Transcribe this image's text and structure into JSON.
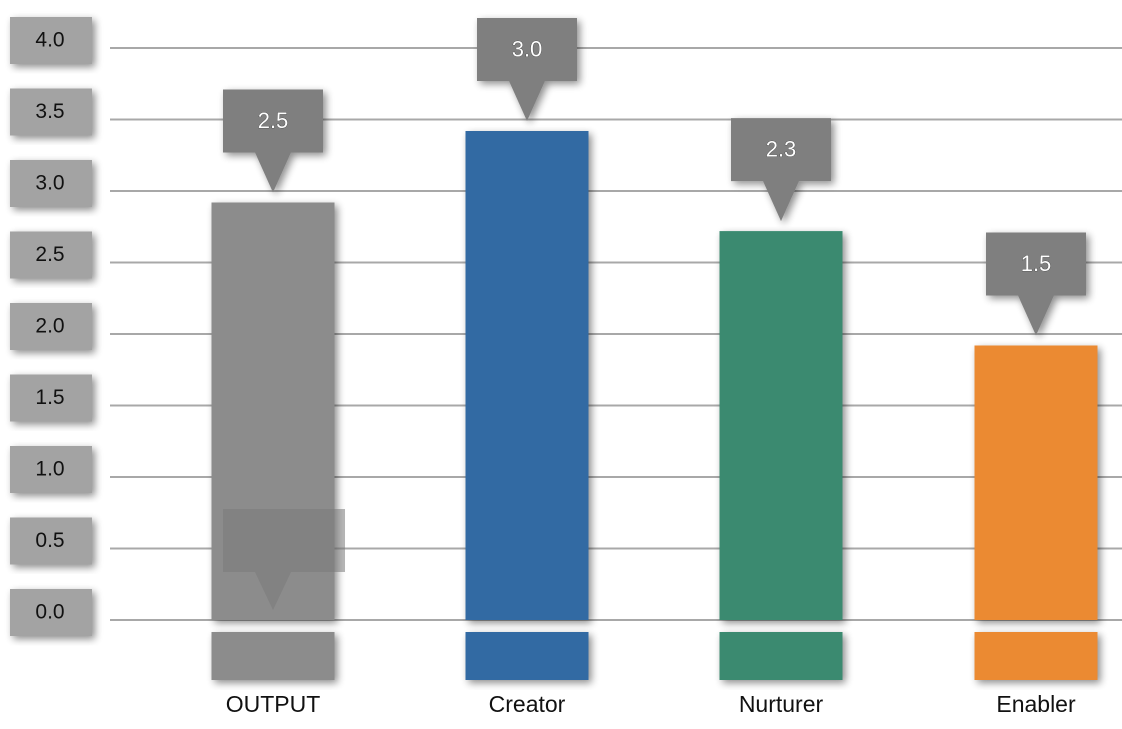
{
  "chart_data": {
    "type": "bar",
    "categories": [
      "OUTPUT",
      "Creator",
      "Nurturer",
      "Enabler"
    ],
    "values": [
      2.5,
      3.0,
      2.3,
      1.5
    ],
    "data_labels": [
      "2.5",
      "3.0",
      "2.3",
      "1.5"
    ],
    "colors": [
      "#8c8c8c",
      "#336ba3",
      "#3a8a70",
      "#eb8a33"
    ],
    "y_ticks": [
      "0.0",
      "0.5",
      "1.0",
      "1.5",
      "2.0",
      "2.5",
      "3.0",
      "3.5",
      "4.0"
    ],
    "ylim": [
      0,
      4
    ],
    "grid": true,
    "title": "",
    "xlabel": "",
    "ylabel": ""
  }
}
